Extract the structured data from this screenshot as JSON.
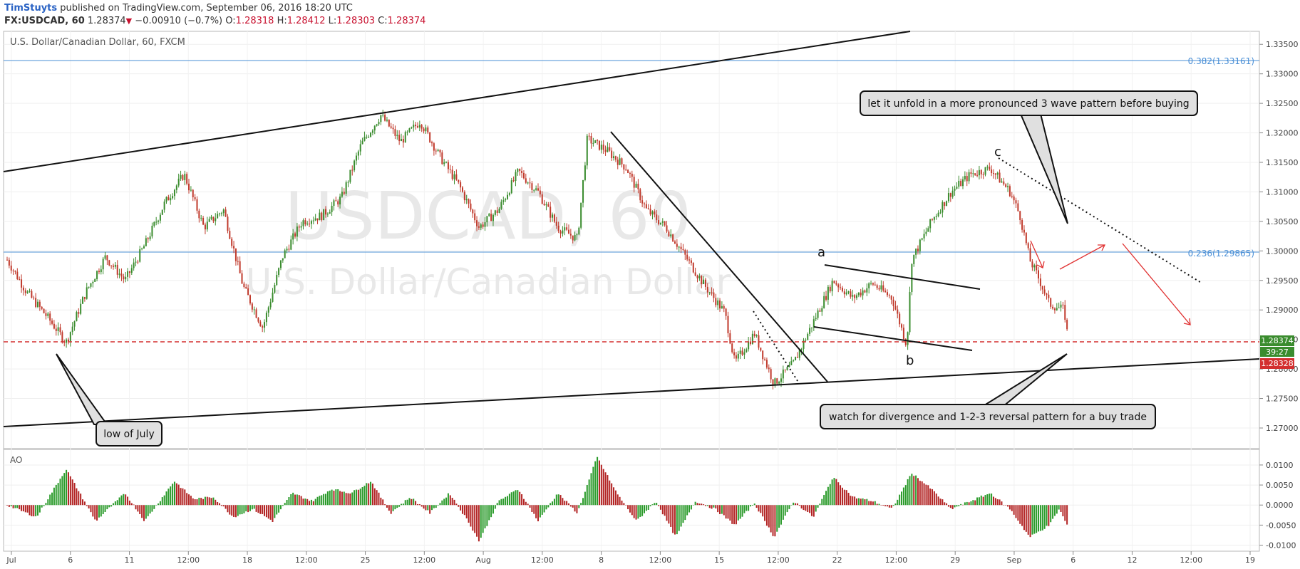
{
  "header": {
    "author": "TimStuyts",
    "published_text": "published on TradingView.com, September 06, 2016 18:20 UTC",
    "symbol": "FX:USDCAD, 60",
    "last": "1.28374",
    "change": "−0.00910 (−0.7%)",
    "o_label": "O:",
    "o_value": "1.28318",
    "h_label": "H:",
    "h_value": "1.28412",
    "l_label": "L:",
    "l_value": "1.28303",
    "c_label": "C:",
    "c_value": "1.28374"
  },
  "chart_title": "U.S. Dollar/Canadian Dollar, 60, FXCM",
  "watermark": {
    "line1": "USDCAD, 60",
    "line2": "U.S. Dollar/Canadian Dollar"
  },
  "colors": {
    "up": "#3a8c2e",
    "down": "#c0392b",
    "ao_up": "#2a9a2a",
    "ao_down": "#b22222",
    "fib": "#4a8fd6",
    "price_red": "#d32f2f"
  },
  "chart_data": [
    {
      "type": "candlestick",
      "title": "U.S. Dollar/Canadian Dollar, 60, FXCM",
      "x_tick_labels": [
        "Jul",
        "6",
        "11",
        "12:00",
        "18",
        "12:00",
        "25",
        "12:00",
        "Aug",
        "12:00",
        "8",
        "12:00",
        "15",
        "12:00",
        "22",
        "12:00",
        "29",
        "Sep",
        "6",
        "12",
        "12:00",
        "19"
      ],
      "y_tick_labels": [
        "1.33500",
        "1.33000",
        "1.32500",
        "1.32000",
        "1.31500",
        "1.31000",
        "1.30500",
        "1.30000",
        "1.29500",
        "1.29000",
        "1.28500",
        "1.28000",
        "1.27500",
        "1.27000"
      ],
      "ylim": [
        1.2665,
        1.3372
      ],
      "price_path": [
        [
          0,
          1.2985
        ],
        [
          2,
          1.293
        ],
        [
          4,
          1.289
        ],
        [
          6,
          1.2845
        ],
        [
          8,
          1.293
        ],
        [
          10,
          1.299
        ],
        [
          12,
          1.295
        ],
        [
          14,
          1.301
        ],
        [
          16,
          1.308
        ],
        [
          18,
          1.313
        ],
        [
          20,
          1.304
        ],
        [
          22,
          1.307
        ],
        [
          24,
          1.294
        ],
        [
          26,
          1.287
        ],
        [
          28,
          1.299
        ],
        [
          30,
          1.305
        ],
        [
          32,
          1.306
        ],
        [
          34,
          1.309
        ],
        [
          36,
          1.318
        ],
        [
          38,
          1.323
        ],
        [
          40,
          1.3185
        ],
        [
          42,
          1.322
        ],
        [
          44,
          1.316
        ],
        [
          46,
          1.311
        ],
        [
          48,
          1.304
        ],
        [
          50,
          1.307
        ],
        [
          52,
          1.3135
        ],
        [
          54,
          1.31
        ],
        [
          56,
          1.304
        ],
        [
          58,
          1.302
        ],
        [
          59,
          1.319
        ],
        [
          61,
          1.317
        ],
        [
          63,
          1.314
        ],
        [
          65,
          1.307
        ],
        [
          67,
          1.304
        ],
        [
          69,
          1.299
        ],
        [
          71,
          1.294
        ],
        [
          73,
          1.2895
        ],
        [
          74,
          1.281
        ],
        [
          76,
          1.286
        ],
        [
          78,
          1.2775
        ],
        [
          80,
          1.281
        ],
        [
          82,
          1.288
        ],
        [
          84,
          1.295
        ],
        [
          86,
          1.292
        ],
        [
          88,
          1.2945
        ],
        [
          90,
          1.292
        ],
        [
          91.5,
          1.284
        ],
        [
          92,
          1.2985
        ],
        [
          94,
          1.305
        ],
        [
          96,
          1.31
        ],
        [
          98,
          1.313
        ],
        [
          100,
          1.314
        ],
        [
          102,
          1.31
        ],
        [
          103,
          1.306
        ],
        [
          104,
          1.2985
        ],
        [
          105,
          1.295
        ],
        [
          106,
          1.291
        ],
        [
          107.5,
          1.29
        ],
        [
          108,
          1.2837
        ]
      ],
      "current_price": "1.28374",
      "price_line": "1.28328",
      "countdown": "39:27",
      "fib_levels": [
        {
          "label": "0.382(1.33161)",
          "value": 1.33161
        },
        {
          "label": "0.236(1.29865)",
          "value": 1.29865
        }
      ],
      "wave_labels": [
        "a",
        "b",
        "c"
      ],
      "annotations": [
        "let it unfold in a more pronounced 3 wave pattern before buying",
        "watch for divergence and 1-2-3 reversal pattern for a buy trade",
        "low of July"
      ]
    },
    {
      "type": "bar",
      "title": "AO",
      "y_tick_labels": [
        "0.0100",
        "0.0050",
        "0.0000",
        "-0.0050",
        "-0.0100"
      ],
      "ylim": [
        -0.0108,
        0.0123
      ],
      "values_path": [
        [
          0,
          0.0
        ],
        [
          3,
          -0.003
        ],
        [
          6,
          0.009
        ],
        [
          9,
          -0.004
        ],
        [
          12,
          0.003
        ],
        [
          14,
          -0.004
        ],
        [
          17,
          0.006
        ],
        [
          19,
          0.0015
        ],
        [
          21,
          0.002
        ],
        [
          23,
          -0.003
        ],
        [
          25,
          -0.001
        ],
        [
          27,
          -0.004
        ],
        [
          29,
          0.003
        ],
        [
          31,
          0.001
        ],
        [
          33,
          0.004
        ],
        [
          35,
          0.003
        ],
        [
          37,
          0.006
        ],
        [
          39,
          -0.002
        ],
        [
          41,
          0.002
        ],
        [
          43,
          -0.002
        ],
        [
          45,
          0.003
        ],
        [
          47,
          -0.0045
        ],
        [
          48,
          -0.009
        ],
        [
          50,
          0.001
        ],
        [
          52,
          0.004
        ],
        [
          54,
          -0.004
        ],
        [
          56,
          0.003
        ],
        [
          58,
          -0.002
        ],
        [
          60,
          0.012
        ],
        [
          62,
          0.003
        ],
        [
          64,
          -0.004
        ],
        [
          66,
          0.001
        ],
        [
          68,
          -0.008
        ],
        [
          70,
          0.001
        ],
        [
          72,
          -0.001
        ],
        [
          74,
          -0.005
        ],
        [
          76,
          0.0005
        ],
        [
          78,
          -0.008
        ],
        [
          80,
          0.001
        ],
        [
          82,
          -0.003
        ],
        [
          84,
          0.007
        ],
        [
          86,
          0.002
        ],
        [
          88,
          0.001
        ],
        [
          90,
          -0.001
        ],
        [
          92,
          0.008
        ],
        [
          94,
          0.004
        ],
        [
          96,
          -0.001
        ],
        [
          98,
          0.001
        ],
        [
          100,
          0.003
        ],
        [
          102,
          -0.001
        ],
        [
          104,
          -0.008
        ],
        [
          106,
          -0.005
        ],
        [
          107,
          -0.001
        ],
        [
          108,
          -0.006
        ]
      ]
    }
  ]
}
